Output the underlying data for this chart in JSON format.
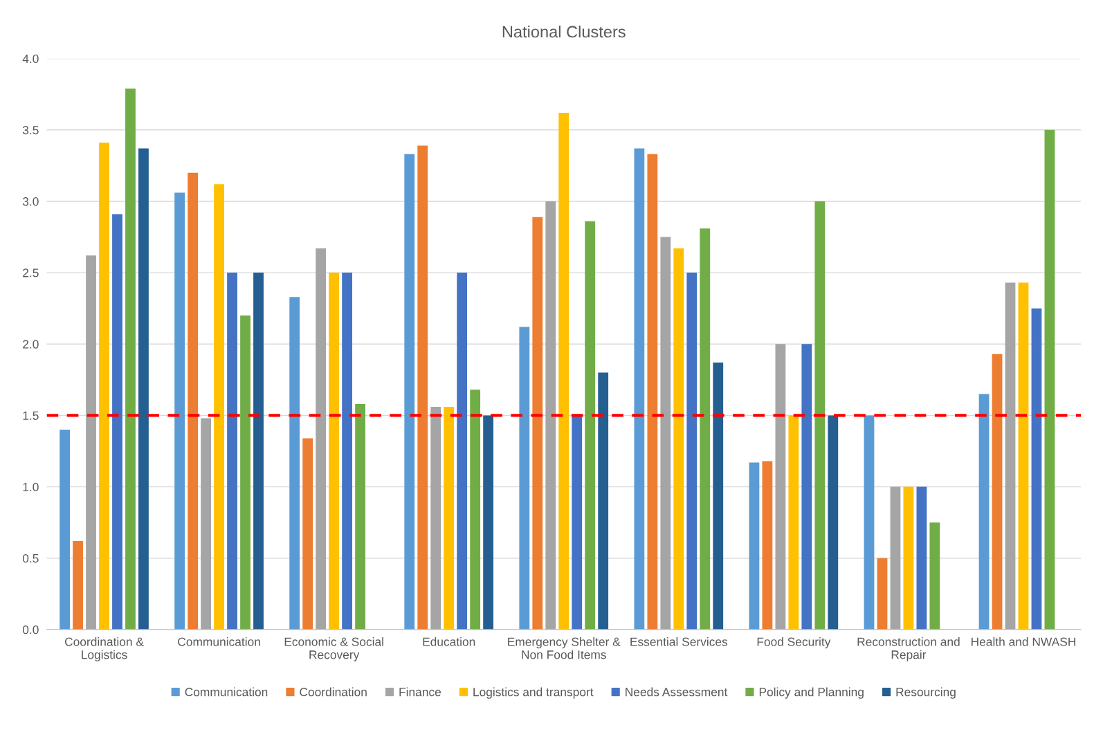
{
  "chart_data": {
    "type": "bar",
    "title": "National Clusters",
    "categories": [
      "Coordination &\nLogistics",
      "Communication",
      "Economic & Social\nRecovery",
      "Education",
      "Emergency Shelter &\nNon Food Items",
      "Essential Services",
      "Food Security",
      "Reconstruction and\nRepair",
      "Health and NWASH"
    ],
    "series": [
      {
        "name": "Communication",
        "color": "#5b9bd5",
        "values": [
          1.4,
          3.06,
          2.33,
          3.33,
          2.12,
          3.37,
          1.17,
          1.5,
          1.65
        ]
      },
      {
        "name": "Coordination",
        "color": "#ed7d31",
        "values": [
          0.62,
          3.2,
          1.34,
          3.39,
          2.89,
          3.33,
          1.18,
          0.5,
          1.93
        ]
      },
      {
        "name": "Finance",
        "color": "#a5a5a5",
        "values": [
          2.62,
          1.48,
          2.67,
          1.56,
          3.0,
          2.75,
          2.0,
          1.0,
          2.43
        ]
      },
      {
        "name": "Logistics and transport",
        "color": "#ffc000",
        "values": [
          3.41,
          3.12,
          2.5,
          1.56,
          3.62,
          2.67,
          1.5,
          1.0,
          2.43
        ]
      },
      {
        "name": "Needs Assessment",
        "color": "#4472c4",
        "values": [
          2.91,
          2.5,
          2.5,
          2.5,
          1.5,
          2.5,
          2.0,
          1.0,
          2.25
        ]
      },
      {
        "name": "Policy and Planning",
        "color": "#70ad47",
        "values": [
          3.79,
          2.2,
          1.58,
          1.68,
          2.86,
          2.81,
          3.0,
          0.75,
          3.5
        ]
      },
      {
        "name": "Resourcing",
        "color": "#255e91",
        "values": [
          3.37,
          2.5,
          null,
          1.5,
          1.8,
          1.87,
          1.5,
          null,
          null
        ]
      }
    ],
    "ylim": [
      0,
      4
    ],
    "yticks": [
      {
        "value": 0,
        "label": "0.0"
      },
      {
        "value": 0.5,
        "label": "0.5"
      },
      {
        "value": 1,
        "label": "1.0"
      },
      {
        "value": 1.5,
        "label": "1.5"
      },
      {
        "value": 2,
        "label": "2.0"
      },
      {
        "value": 2.5,
        "label": "2.5"
      },
      {
        "value": 3,
        "label": "3.0"
      },
      {
        "value": 3.5,
        "label": "3.5"
      },
      {
        "value": 4,
        "label": "4.0"
      }
    ],
    "ref_lines": [
      {
        "axis": "y",
        "value": 1.5,
        "color": "#ff0000",
        "line_style": "dashed"
      }
    ],
    "grid": "y",
    "legend": "bottom"
  }
}
